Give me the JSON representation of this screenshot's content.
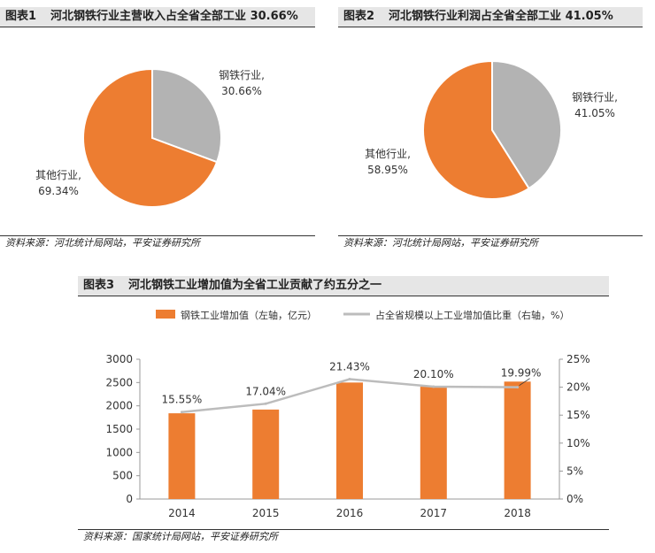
{
  "colors": {
    "steel": "#ed7d31",
    "other": "#b3b3b3",
    "line": "#bcbcbc"
  },
  "figure1": {
    "number": "图表1",
    "title": "河北钢铁行业主营收入占全省全部工业 30.66%",
    "source": "资料来源：河北统计局网站，平安证券研究所",
    "chart_data": {
      "type": "pie",
      "title": "河北钢铁行业主营收入占全省全部工业 30.66%",
      "slices": [
        {
          "label": "钢铁行业,",
          "value_label": "30.66%",
          "value": 30.66
        },
        {
          "label": "其他行业,",
          "value_label": "69.34%",
          "value": 69.34
        }
      ]
    }
  },
  "figure2": {
    "number": "图表2",
    "title": "河北钢铁行业利润占全省全部工业 41.05%",
    "source": "资料来源：河北统计局网站，平安证券研究所",
    "chart_data": {
      "type": "pie",
      "title": "河北钢铁行业利润占全省全部工业 41.05%",
      "slices": [
        {
          "label": "钢铁行业,",
          "value_label": "41.05%",
          "value": 41.05
        },
        {
          "label": "其他行业,",
          "value_label": "58.95%",
          "value": 58.95
        }
      ]
    }
  },
  "figure3": {
    "number": "图表3",
    "title": "河北钢铁工业增加值为全省工业贡献了约五分之一",
    "source": "资料来源：国家统计局网站，平安证券研究所",
    "legend": {
      "bar": "钢铁工业增加值（左轴，亿元）",
      "line": "占全省规模以上工业增加值比重（右轴，%）"
    },
    "chart_data": {
      "type": "bar+line",
      "categories": [
        "2014",
        "2015",
        "2016",
        "2017",
        "2018"
      ],
      "series": [
        {
          "name": "钢铁工业增加值（左轴，亿元）",
          "type": "bar",
          "axis": "left",
          "values": [
            1840,
            1920,
            2500,
            2410,
            2520
          ]
        },
        {
          "name": "占全省规模以上工业增加值比重（右轴，%）",
          "type": "line",
          "axis": "right",
          "values": [
            15.55,
            17.04,
            21.43,
            20.1,
            19.99
          ],
          "labels": [
            "15.55%",
            "17.04%",
            "21.43%",
            "20.10%",
            "19.99%"
          ]
        }
      ],
      "left_axis": {
        "min": 0,
        "max": 3000,
        "ticks": [
          "0",
          "500",
          "1000",
          "1500",
          "2000",
          "2500",
          "3000"
        ]
      },
      "right_axis": {
        "min": 0,
        "max": 25,
        "ticks": [
          "0%",
          "5%",
          "10%",
          "15%",
          "20%",
          "25%"
        ]
      }
    }
  }
}
